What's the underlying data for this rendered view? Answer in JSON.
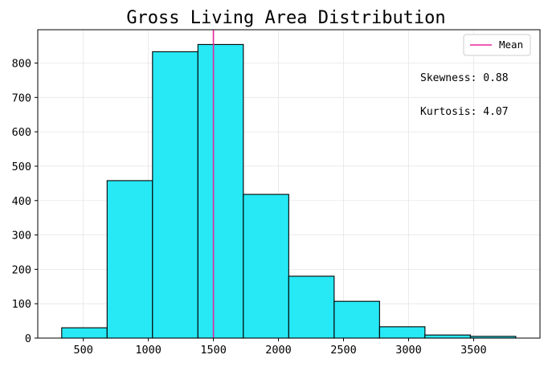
{
  "chart_data": {
    "type": "bar",
    "title": "Gross Living Area Distribution",
    "xlabel": "",
    "ylabel": "",
    "bins": [
      {
        "start": 334,
        "end": 683,
        "count": 30
      },
      {
        "start": 683,
        "end": 1032,
        "count": 458
      },
      {
        "start": 1032,
        "end": 1381,
        "count": 833
      },
      {
        "start": 1381,
        "end": 1730,
        "count": 854
      },
      {
        "start": 1730,
        "end": 2079,
        "count": 418
      },
      {
        "start": 2079,
        "end": 2428,
        "count": 180
      },
      {
        "start": 2428,
        "end": 2777,
        "count": 107
      },
      {
        "start": 2777,
        "end": 3126,
        "count": 33
      },
      {
        "start": 3126,
        "end": 3475,
        "count": 9
      },
      {
        "start": 3475,
        "end": 3824,
        "count": 5
      }
    ],
    "mean": 1500,
    "xlim": [
      150,
      4010
    ],
    "ylim": [
      0,
      897
    ],
    "xticks": [
      500,
      1000,
      1500,
      2000,
      2500,
      3000,
      3500
    ],
    "yticks": [
      0,
      100,
      200,
      300,
      400,
      500,
      600,
      700,
      800
    ],
    "grid": true,
    "legend": {
      "placement": "top-right",
      "entries": [
        {
          "label": "Mean",
          "color": "#e8279a"
        }
      ]
    },
    "annotations": [
      "Skewness: 0.88",
      "Kurtosis: 4.07"
    ],
    "colors": {
      "bar_fill": "#27e8f5",
      "bar_edge": "#000000",
      "mean_line": "#e8279a"
    }
  }
}
